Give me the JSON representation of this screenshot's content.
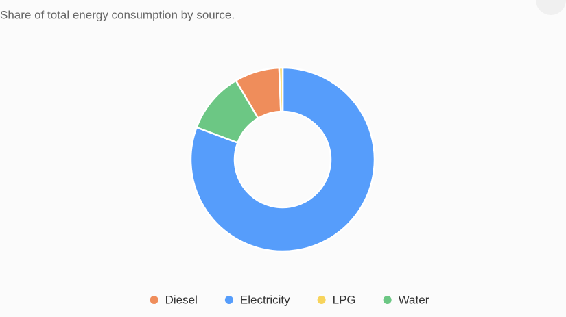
{
  "chart_data": {
    "type": "donut",
    "subtitle": "Share of total energy consumption by source.",
    "categories": [
      "Diesel",
      "Electricity",
      "LPG",
      "Water"
    ],
    "values": [
      7.9,
      80.7,
      0.6,
      10.8
    ],
    "colors": [
      "#ef8d5b",
      "#569dfb",
      "#f7d45c",
      "#6cc784"
    ]
  }
}
